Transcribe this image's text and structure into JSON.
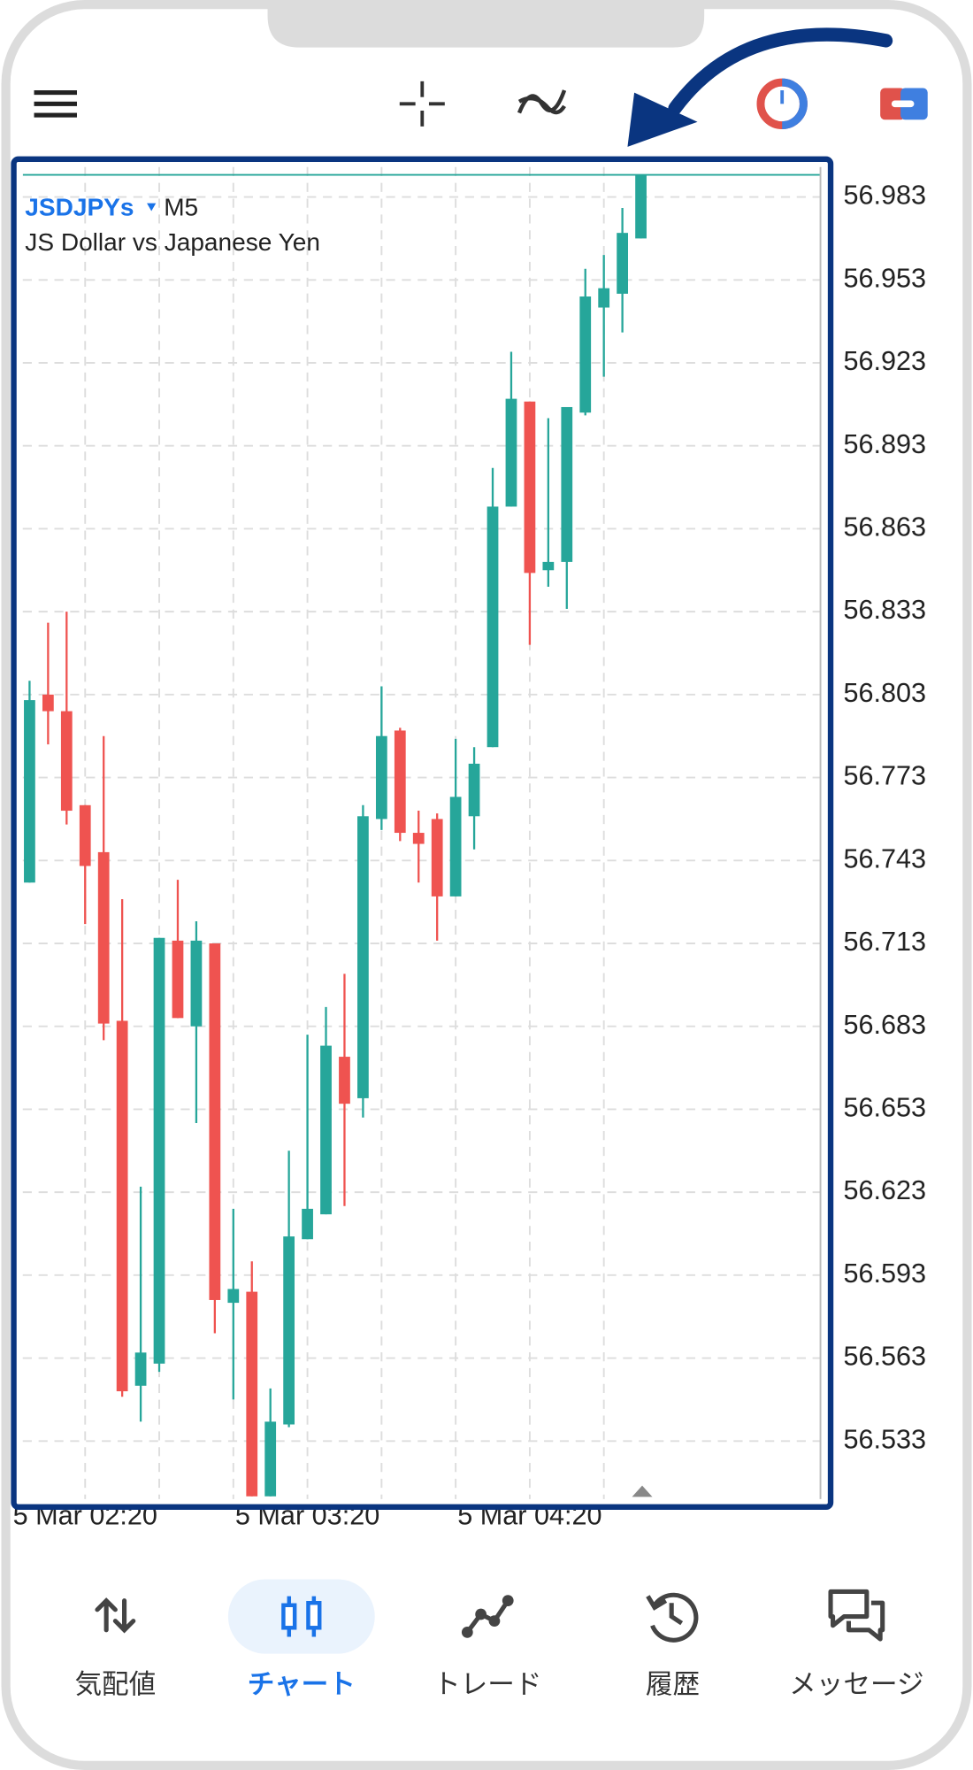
{
  "chart_data": {
    "type": "candlestick",
    "symbol": "JSDJPYs",
    "timeframe": "M5",
    "subtitle": "JS Dollar vs Japanese Yen",
    "categories": [
      null,
      null,
      null,
      "5 Mar 02:20",
      null,
      null,
      null,
      null,
      null,
      null,
      null,
      null,
      null,
      null,
      null,
      "5 Mar 03:20",
      null,
      null,
      null,
      null,
      null,
      null,
      null,
      null,
      null,
      null,
      null,
      "5 Mar 04:20",
      null,
      null,
      null,
      null,
      null,
      null
    ],
    "open": [
      56.735,
      56.803,
      56.797,
      56.763,
      56.746,
      56.685,
      56.553,
      56.561,
      56.714,
      56.683,
      56.713,
      56.583,
      56.587,
      56.513,
      56.539,
      56.606,
      56.615,
      56.672,
      56.657,
      56.758,
      56.79,
      56.753,
      56.758,
      56.73,
      56.759,
      56.784,
      56.871,
      56.909,
      56.848,
      56.851,
      56.905,
      56.943,
      56.948,
      56.968
    ],
    "high": [
      56.808,
      56.829,
      56.833,
      56.763,
      56.788,
      56.729,
      56.625,
      56.715,
      56.736,
      56.721,
      56.713,
      56.617,
      56.598,
      56.552,
      56.638,
      56.68,
      56.69,
      56.702,
      56.763,
      56.806,
      56.791,
      56.761,
      56.76,
      56.787,
      56.784,
      56.885,
      56.927,
      56.909,
      56.903,
      56.907,
      56.957,
      56.962,
      56.979,
      56.991
    ],
    "low": [
      56.735,
      56.785,
      56.756,
      56.72,
      56.678,
      56.549,
      56.54,
      56.558,
      56.686,
      56.648,
      56.572,
      56.548,
      56.513,
      56.513,
      56.538,
      56.606,
      56.615,
      56.618,
      56.65,
      56.754,
      56.75,
      56.735,
      56.714,
      56.73,
      56.747,
      56.784,
      56.871,
      56.821,
      56.842,
      56.834,
      56.904,
      56.918,
      56.934,
      56.968
    ],
    "close": [
      56.801,
      56.797,
      56.761,
      56.741,
      56.684,
      56.551,
      56.565,
      56.715,
      56.686,
      56.714,
      56.584,
      56.588,
      56.513,
      56.54,
      56.607,
      56.617,
      56.676,
      56.655,
      56.759,
      56.788,
      56.753,
      56.749,
      56.73,
      56.766,
      56.778,
      56.871,
      56.91,
      56.847,
      56.851,
      56.907,
      56.947,
      56.95,
      56.97,
      56.991
    ],
    "up_color": "#26a69a",
    "down_color": "#ef5350",
    "price_line_color": "#26a69a",
    "ylim": [
      56.512,
      56.993
    ],
    "yticks": [
      56.983,
      56.953,
      56.923,
      56.893,
      56.863,
      56.833,
      56.803,
      56.773,
      56.743,
      56.713,
      56.683,
      56.653,
      56.623,
      56.593,
      56.563,
      56.533
    ],
    "grid": true
  },
  "nav": {
    "items": [
      "気配値",
      "チャート",
      "トレード",
      "履歴",
      "メッセージ"
    ],
    "active": 1
  }
}
